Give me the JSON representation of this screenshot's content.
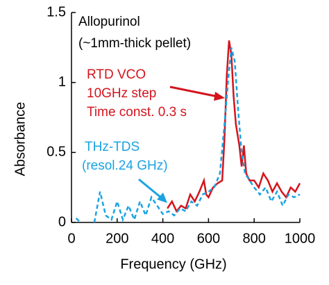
{
  "chart_data": {
    "type": "line",
    "xlabel": "Frequency (GHz)",
    "ylabel": "Absorbance",
    "annotations": [
      "Allopurinol",
      "(~1mm-thick pellet)",
      "10GHz step",
      "Time const. 0.3 s",
      "(resol.24 GHz)"
    ],
    "xlim": [
      0,
      1000
    ],
    "xticks": [
      0,
      200,
      400,
      600,
      800,
      1000
    ],
    "ylim": [
      0,
      1.5
    ],
    "yticks": [
      0,
      0.5,
      1,
      1.5
    ],
    "series": [
      {
        "name": "RTD VCO",
        "color": "#d3141c",
        "dashed": false,
        "x": [
          420,
          440,
          460,
          480,
          500,
          520,
          540,
          560,
          580,
          590,
          600,
          620,
          640,
          660,
          670,
          680,
          690,
          700,
          710,
          720,
          735,
          745,
          755,
          765,
          780,
          800,
          820,
          840,
          860,
          880,
          900,
          920,
          940,
          960,
          980,
          1000
        ],
        "values": [
          0.1,
          0.15,
          0.08,
          0.12,
          0.1,
          0.2,
          0.15,
          0.22,
          0.3,
          0.2,
          0.18,
          0.25,
          0.28,
          0.3,
          0.6,
          1.05,
          1.3,
          1.2,
          0.9,
          0.7,
          0.55,
          0.4,
          0.55,
          0.35,
          0.3,
          0.3,
          0.25,
          0.35,
          0.3,
          0.22,
          0.28,
          0.22,
          0.18,
          0.25,
          0.22,
          0.28
        ]
      },
      {
        "name": "THz-TDS",
        "color": "#1aa3e0",
        "dashed": true,
        "x": [
          20,
          40,
          70,
          100,
          125,
          150,
          175,
          200,
          225,
          250,
          275,
          300,
          325,
          350,
          375,
          400,
          425,
          450,
          475,
          500,
          525,
          550,
          575,
          600,
          625,
          650,
          670,
          685,
          700,
          715,
          730,
          745,
          760,
          780,
          800,
          825,
          850,
          875,
          900,
          925,
          950,
          975,
          1000
        ],
        "values": [
          0.03,
          0.0,
          null,
          0.0,
          0.22,
          0.05,
          0.02,
          0.15,
          0.02,
          0.12,
          0.02,
          0.15,
          0.05,
          0.18,
          0.12,
          0.06,
          0.08,
          0.05,
          0.1,
          0.08,
          0.15,
          0.12,
          0.2,
          0.22,
          0.25,
          0.35,
          0.7,
          1.0,
          1.25,
          1.15,
          0.8,
          0.5,
          0.35,
          0.3,
          0.25,
          0.2,
          0.25,
          0.15,
          0.22,
          0.12,
          0.2,
          0.18,
          0.2
        ]
      }
    ]
  }
}
